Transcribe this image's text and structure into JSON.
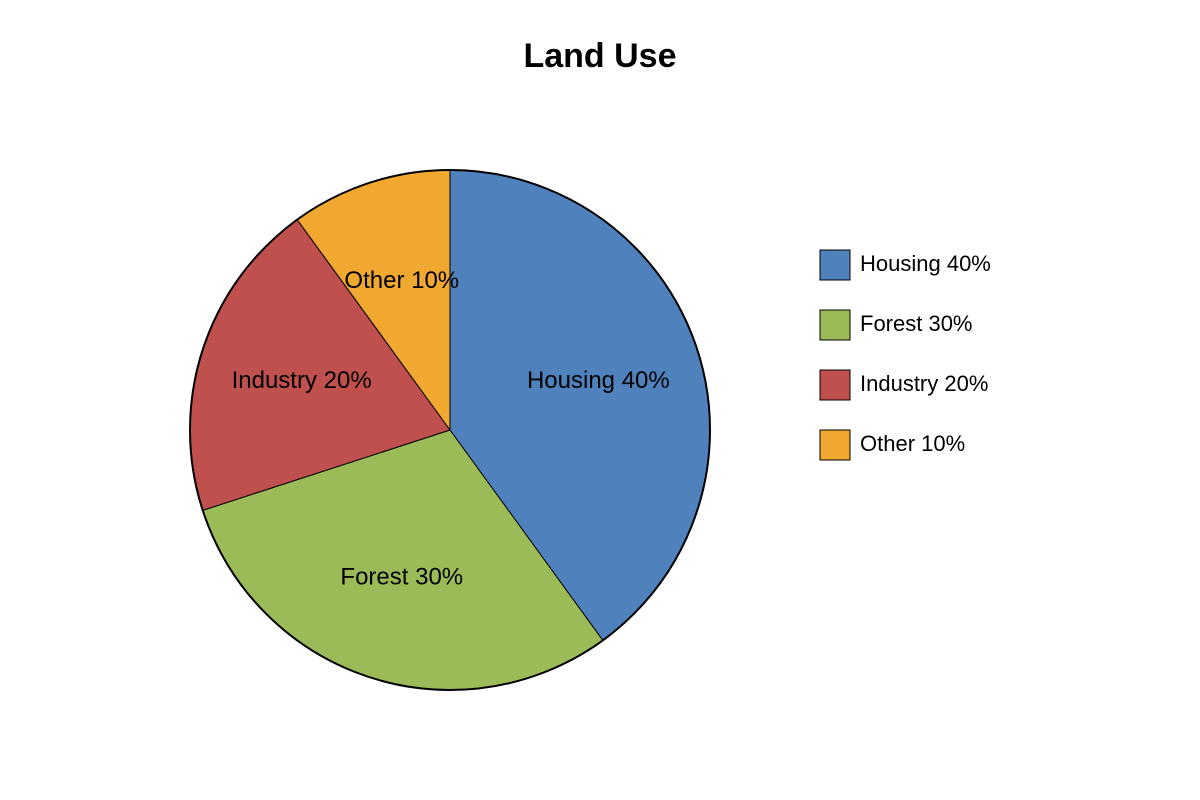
{
  "chart_data": {
    "type": "pie",
    "title": "Land Use",
    "categories": [
      "Housing 40%",
      "Forest 30%",
      "Industry 20%",
      "Other 10%"
    ],
    "values": [
      40,
      30,
      20,
      10
    ],
    "colors": [
      "#4f81bd",
      "#9bbb59",
      "#c0504d",
      "#f0a830"
    ],
    "legend": "right"
  }
}
